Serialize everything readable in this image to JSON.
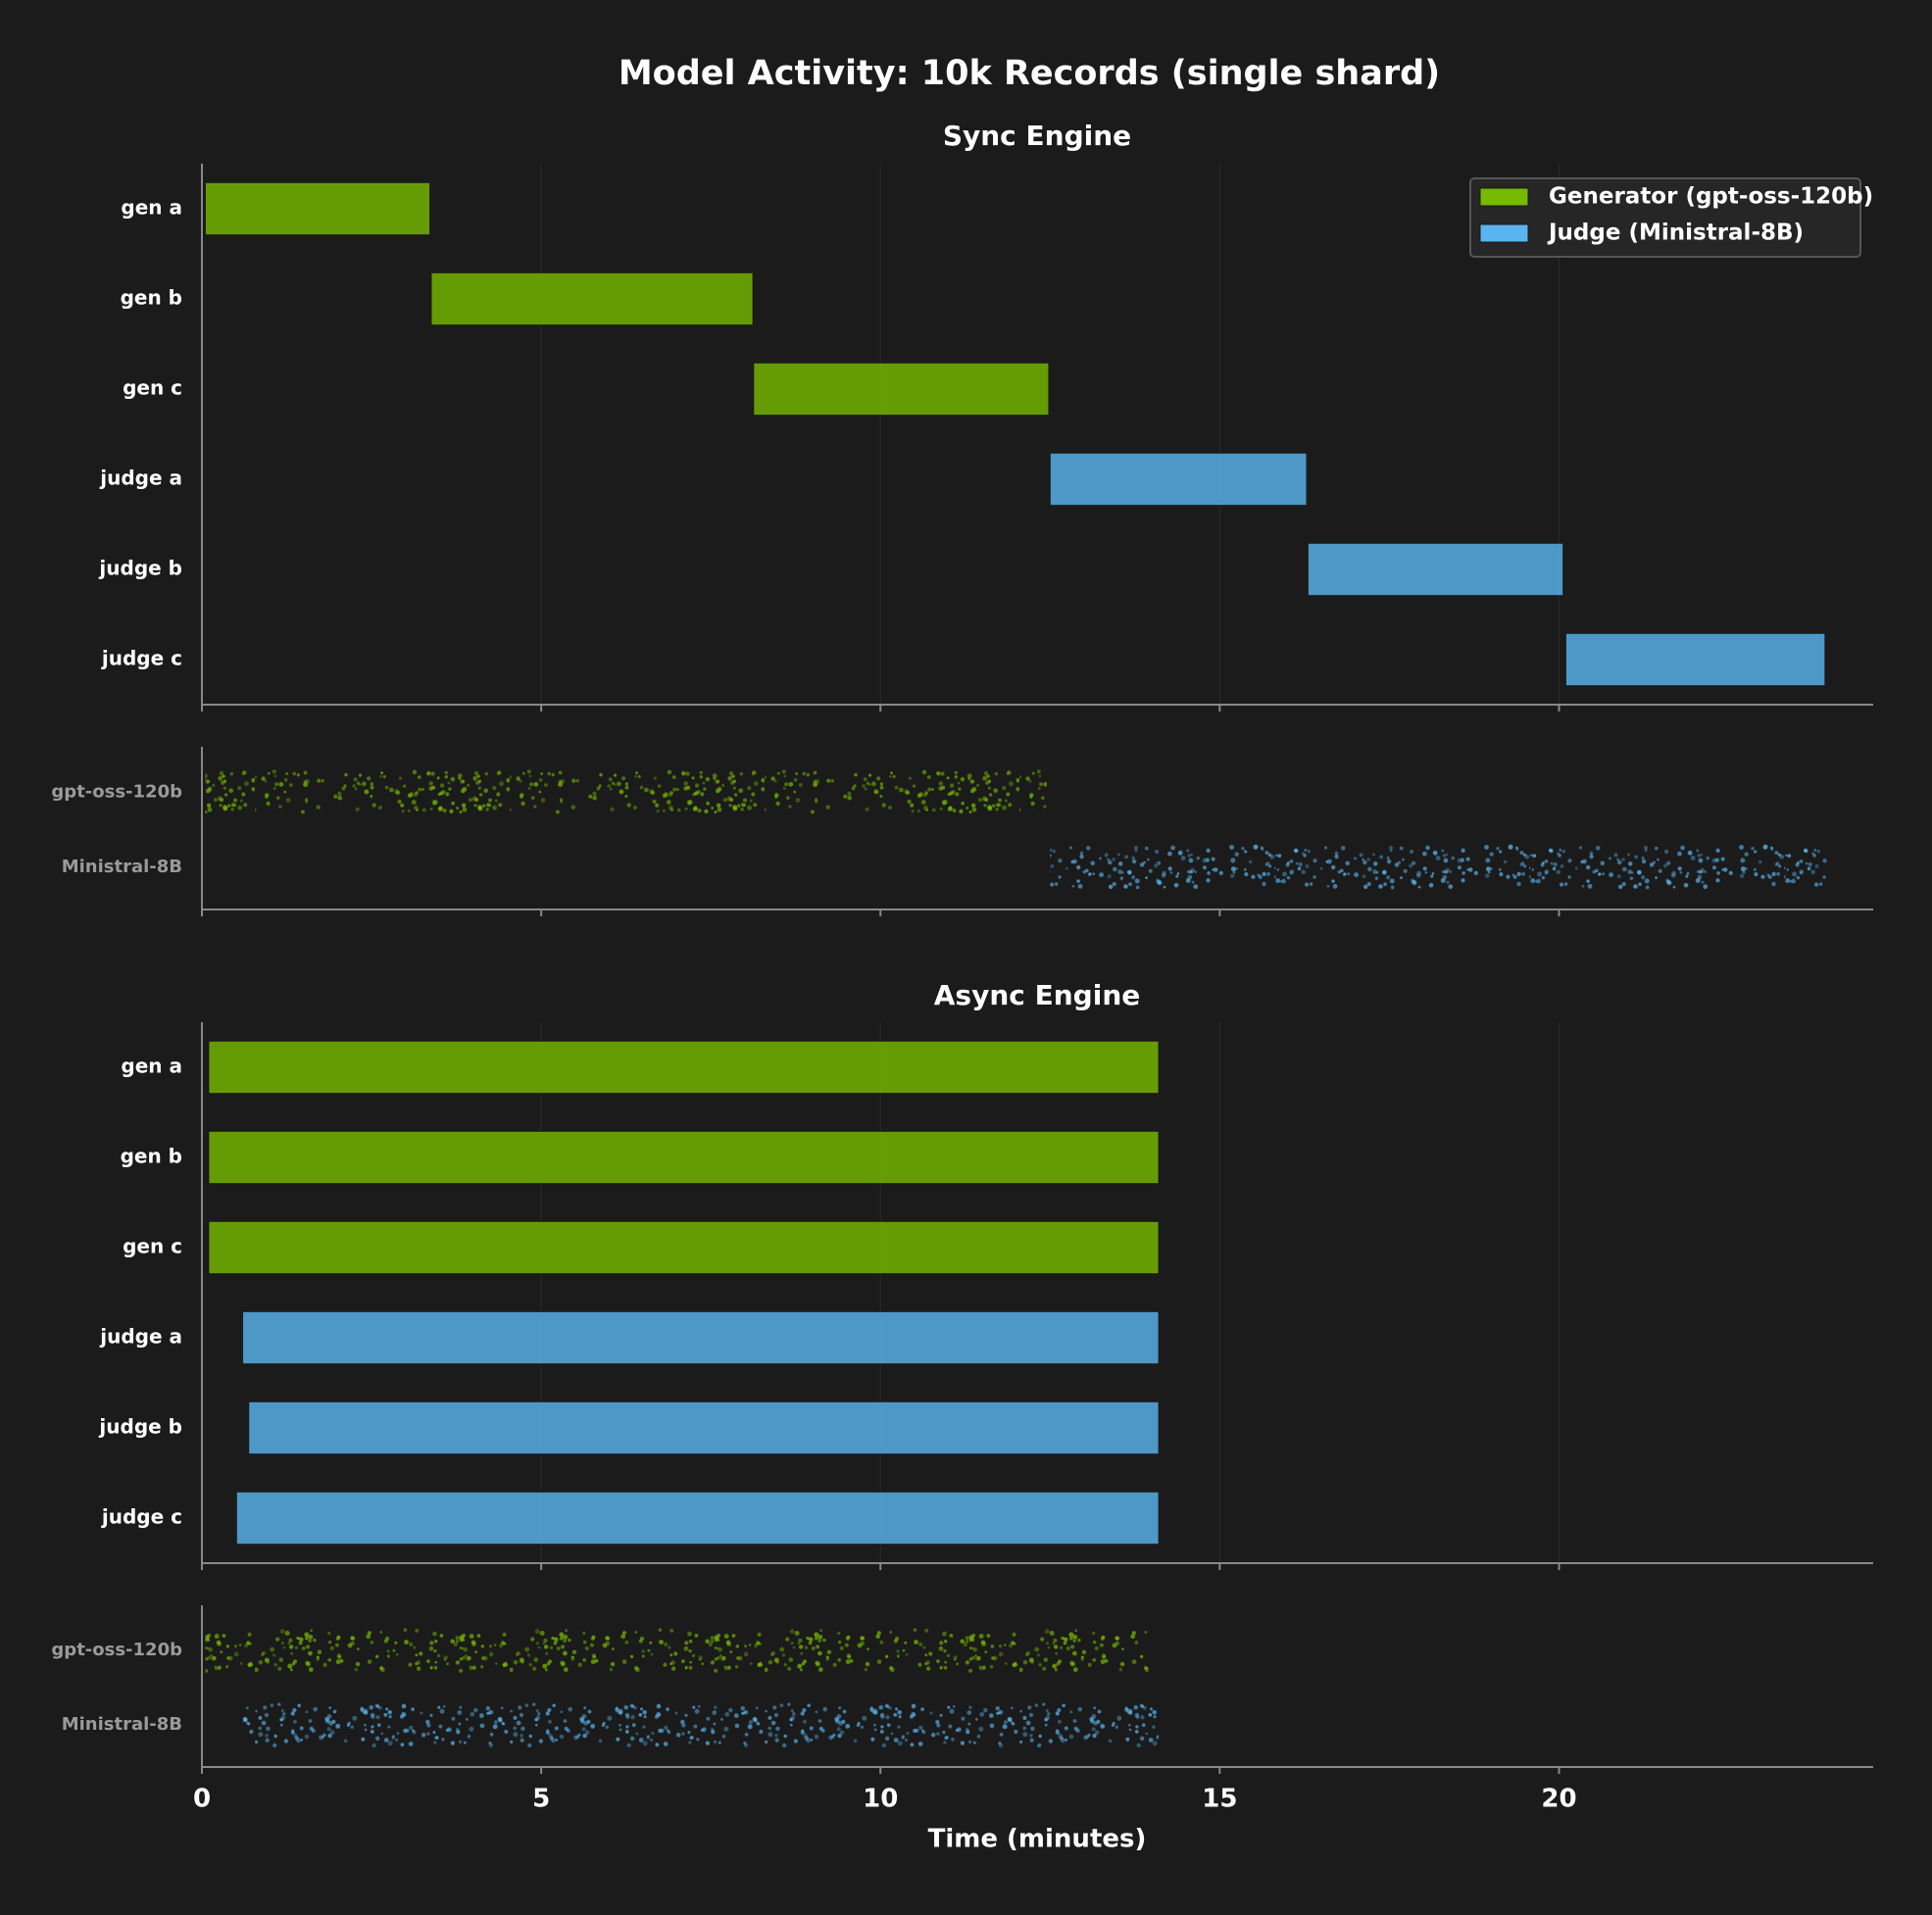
{
  "title": "Model Activity: 10k Records (single shard)",
  "x_label": "Time (minutes)",
  "chart_data": [
    {
      "type": "gantt",
      "title": "Sync Engine",
      "categories": [
        "gen a",
        "gen b",
        "gen c",
        "judge a",
        "judge b",
        "judge c"
      ],
      "series": [
        {
          "name": "Generator (gpt-oss-120b)",
          "color": "#76b900",
          "starts": [
            0.05,
            3.38,
            8.13,
            null,
            null,
            null
          ],
          "ends": [
            3.36,
            8.12,
            12.48,
            null,
            null,
            null
          ]
        },
        {
          "name": "Judge (Ministral-8B)",
          "color": "#5ab4ef",
          "starts": [
            null,
            null,
            null,
            12.5,
            16.3,
            20.1
          ],
          "ends": [
            null,
            null,
            null,
            16.28,
            20.06,
            23.92
          ]
        }
      ],
      "xlim": [
        0,
        24.63
      ],
      "xticks": [
        0,
        5,
        10,
        15,
        20
      ],
      "grid": true,
      "legend": "upper right"
    },
    {
      "type": "strip",
      "categories": [
        "gpt-oss-120b",
        "Ministral-8B"
      ],
      "colors": [
        "#76b900",
        "#5ab4ef"
      ],
      "starts": [
        0.05,
        12.5
      ],
      "ends": [
        12.45,
        23.95
      ],
      "xlim": [
        0,
        24.63
      ],
      "xticks": [
        0,
        5,
        10,
        15,
        20
      ]
    },
    {
      "type": "gantt",
      "title": "Async Engine",
      "categories": [
        "gen a",
        "gen b",
        "gen c",
        "judge a",
        "judge b",
        "judge c"
      ],
      "series": [
        {
          "color": "#76b900",
          "starts": [
            0.1,
            0.1,
            0.1,
            null,
            null,
            null
          ],
          "ends": [
            14.1,
            14.1,
            14.1,
            null,
            null,
            null
          ]
        },
        {
          "color": "#5ab4ef",
          "starts": [
            null,
            null,
            null,
            0.6,
            0.69,
            0.51
          ],
          "ends": [
            null,
            null,
            null,
            14.1,
            14.1,
            14.1
          ]
        }
      ],
      "xlim": [
        0,
        24.63
      ],
      "xticks": [
        0,
        5,
        10,
        15,
        20
      ],
      "grid": true
    },
    {
      "type": "strip",
      "categories": [
        "gpt-oss-120b",
        "Ministral-8B"
      ],
      "colors": [
        "#76b900",
        "#5ab4ef"
      ],
      "starts": [
        0.05,
        0.6
      ],
      "ends": [
        13.95,
        14.1
      ],
      "xlim": [
        0,
        24.63
      ],
      "xticks": [
        0,
        5,
        10,
        15,
        20
      ],
      "tick_labels": true
    }
  ]
}
